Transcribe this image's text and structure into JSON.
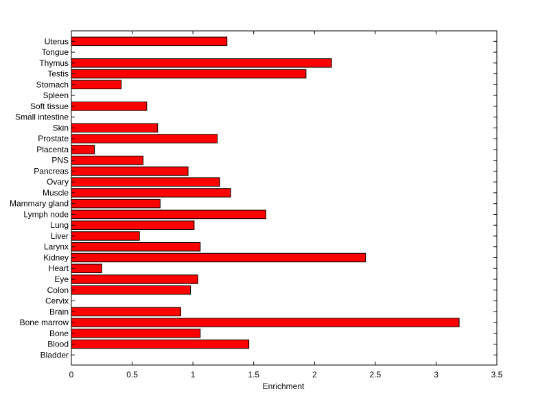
{
  "chart_data": {
    "type": "bar",
    "orientation": "horizontal",
    "title": "",
    "xlabel": "Enrichment",
    "ylabel": "",
    "xlim": [
      0,
      3.5
    ],
    "xticks": [
      "0",
      "0.5",
      "1",
      "1.5",
      "2",
      "2.5",
      "3",
      "3.5"
    ],
    "grid": false,
    "bar_color": "#ff0000",
    "bar_edge_color": "#000000",
    "categories": [
      "Bladder",
      "Blood",
      "Bone",
      "Bone marrow",
      "Brain",
      "Cervix",
      "Colon",
      "Eye",
      "Heart",
      "Kidney",
      "Larynx",
      "Liver",
      "Lung",
      "Lymph node",
      "Mammary gland",
      "Muscle",
      "Ovary",
      "Pancreas",
      "PNS",
      "Placenta",
      "Prostate",
      "Skin",
      "Small intestine",
      "Soft tissue",
      "Spleen",
      "Stomach",
      "Testis",
      "Thymus",
      "Tongue",
      "Uterus"
    ],
    "values": [
      0,
      1.46,
      1.06,
      3.19,
      0.9,
      0,
      0.98,
      1.04,
      0.25,
      2.42,
      1.06,
      0.56,
      1.01,
      1.6,
      0.73,
      1.31,
      1.22,
      0.96,
      0.59,
      0.19,
      1.2,
      0.71,
      0,
      0.62,
      0,
      0.41,
      1.93,
      2.14,
      0,
      1.28
    ]
  }
}
